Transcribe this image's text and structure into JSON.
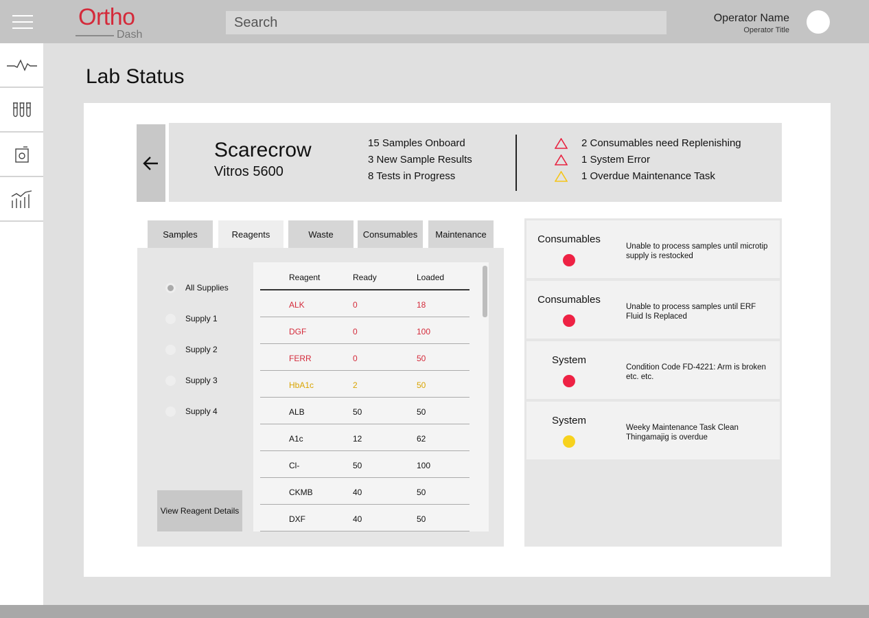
{
  "header": {
    "logo_main": "Ortho",
    "logo_sub": "Dash",
    "search_placeholder": "Search",
    "operator_name": "Operator Name",
    "operator_title": "Operator Title"
  },
  "sidenav": {
    "items": [
      {
        "icon": "pulse-icon"
      },
      {
        "icon": "test-tubes-icon"
      },
      {
        "icon": "instrument-icon"
      },
      {
        "icon": "analytics-chart-icon"
      }
    ]
  },
  "page_title": "Lab Status",
  "device": {
    "name": "Scarecrow",
    "model": "Vitros 5600",
    "stats": [
      {
        "count": "15",
        "label": "Samples Onboard"
      },
      {
        "count": "3",
        "label": "New Sample Results"
      },
      {
        "count": "8",
        "label": "Tests in Progress"
      }
    ],
    "alerts": [
      {
        "text": "2 Consumables need Replenishing",
        "color": "#e8213f"
      },
      {
        "text": "1 System Error",
        "color": "#e8213f"
      },
      {
        "text": "1 Overdue Maintenance Task",
        "color": "#f5c518"
      }
    ]
  },
  "tabs": [
    "Samples",
    "Reagents",
    "Waste",
    "Consumables",
    "Maintenance"
  ],
  "active_tab": "Reagents",
  "supplies": [
    "All Supplies",
    "Supply 1",
    "Supply 2",
    "Supply 3",
    "Supply 4"
  ],
  "selected_supply": "All Supplies",
  "view_details_label": "View Reagent Details",
  "reagent_table": {
    "headers": [
      "Reagent",
      "Ready",
      "Loaded"
    ],
    "rows": [
      {
        "reagent": "ALK",
        "ready": "0",
        "loaded": "18",
        "status": "critical"
      },
      {
        "reagent": "DGF",
        "ready": "0",
        "loaded": "100",
        "status": "critical"
      },
      {
        "reagent": "FERR",
        "ready": "0",
        "loaded": "50",
        "status": "critical"
      },
      {
        "reagent": "HbA1c",
        "ready": "2",
        "loaded": "50",
        "status": "warning"
      },
      {
        "reagent": "ALB",
        "ready": "50",
        "loaded": "50",
        "status": "ok"
      },
      {
        "reagent": "A1c",
        "ready": "12",
        "loaded": "62",
        "status": "ok"
      },
      {
        "reagent": "Cl-",
        "ready": "50",
        "loaded": "100",
        "status": "ok"
      },
      {
        "reagent": "CKMB",
        "ready": "40",
        "loaded": "50",
        "status": "ok"
      },
      {
        "reagent": "DXF",
        "ready": "40",
        "loaded": "50",
        "status": "ok"
      }
    ]
  },
  "status_colors": {
    "critical": "#d42a3a",
    "warning": "#d9a400",
    "ok": "#111111"
  },
  "alert_cards": [
    {
      "category": "Consumables",
      "color": "#ee2244",
      "description": "Unable to process samples until microtip supply is restocked"
    },
    {
      "category": "Consumables",
      "color": "#ee2244",
      "description": "Unable to process samples until ERF Fluid Is Replaced"
    },
    {
      "category": "System",
      "color": "#ee2244",
      "description": "Condition Code FD-4221: Arm is broken etc. etc."
    },
    {
      "category": "System",
      "color": "#f7d21e",
      "description": "Weeky Maintenance Task Clean Thingamajig is overdue"
    }
  ]
}
